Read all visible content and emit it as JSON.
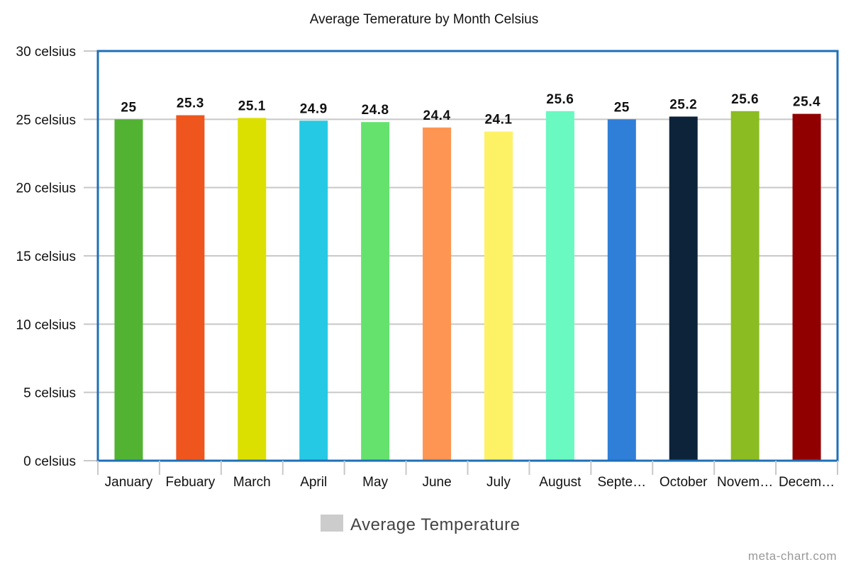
{
  "chart_data": {
    "type": "bar",
    "title": "Average Temerature by Month Celsius",
    "categories": [
      "January",
      "Febuary",
      "March",
      "April",
      "May",
      "June",
      "July",
      "August",
      "Septe…",
      "October",
      "Novem…",
      "Decem…"
    ],
    "series": [
      {
        "name": "Average Temperature",
        "values": [
          25,
          25.3,
          25.1,
          24.9,
          24.8,
          24.4,
          24.1,
          25.6,
          25,
          25.2,
          25.6,
          25.4
        ],
        "data_labels": [
          "25",
          "25.3",
          "25.1",
          "24.9",
          "24.8",
          "24.4",
          "24.1",
          "25.6",
          "25",
          "25.2",
          "25.6",
          "25.4"
        ],
        "colors": [
          "#52b332",
          "#ee561e",
          "#dce000",
          "#26c9e4",
          "#65e26e",
          "#ff9552",
          "#fdf265",
          "#69f9c1",
          "#2f7ed8",
          "#0d233a",
          "#8bbc21",
          "#910000"
        ]
      }
    ],
    "ylim": [
      0,
      30
    ],
    "yticks": [
      0,
      5,
      10,
      15,
      20,
      25,
      30
    ],
    "ytick_labels": [
      "0 celsius",
      "5 celsius",
      "10 celsius",
      "15 celsius",
      "20 celsius",
      "25 celsius",
      "30 celsius"
    ],
    "xlabel": "",
    "ylabel": "",
    "grid": true,
    "legend": {
      "position": "bottom-center",
      "swatch_color": "#cccccc"
    },
    "frame_color": "#1e6fb8"
  },
  "credit": "meta-chart.com"
}
